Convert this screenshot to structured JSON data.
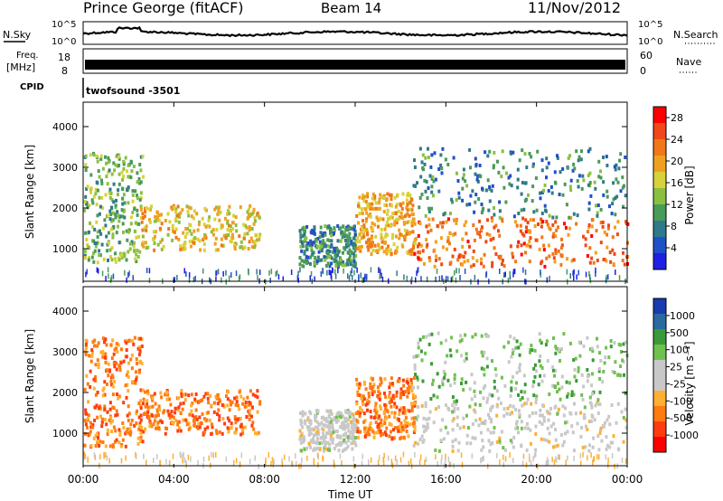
{
  "header": {
    "station": "Prince George (fitACF)",
    "beam": "Beam 14",
    "date": "11/Nov/2012"
  },
  "noise_panel": {
    "left_label": "N.Sky",
    "right_label": "N.Search",
    "tick_top": "10^5",
    "tick_bottom": "10^0"
  },
  "freq_panel": {
    "left_label_1": "Freq.",
    "left_label_2": "[MHz]",
    "tick_top": "18",
    "tick_bottom": "8",
    "right_label": "Nave",
    "right_tick_top": "60",
    "right_tick_bottom": "0"
  },
  "cpid_panel": {
    "label": "CPID",
    "value": "twofsound -3501"
  },
  "colors": {
    "power_scale": [
      "#1f1fe6",
      "#2050c8",
      "#2f7a8a",
      "#4a9a5a",
      "#8ac040",
      "#d7d23a",
      "#f0a020",
      "#f07818",
      "#f04818",
      "#ff0000"
    ],
    "velocity_scale": [
      "#ff0000",
      "#ff3c10",
      "#ff7a10",
      "#ffb030",
      "#c8c8c8",
      "#c8c8c8",
      "#70c050",
      "#3a9a3a",
      "#2a6aa0",
      "#1a3ab0"
    ]
  },
  "chart_data": [
    {
      "type": "heatmap",
      "name": "power",
      "ylabel": "Slant Range [km]",
      "y_ticks": [
        "1000",
        "2000",
        "3000",
        "4000"
      ],
      "ylim": [
        200,
        4600
      ],
      "xlim": [
        "00:00",
        "24:00"
      ],
      "colorbar_label": "Power [dB]",
      "colorbar_ticks": [
        "4",
        "8",
        "12",
        "16",
        "20",
        "24",
        "28"
      ],
      "colorbar_range": [
        0,
        30
      ],
      "features": [
        {
          "t_start": 0.0,
          "t_end": 2.6,
          "range_start": 700,
          "range_end": 3400,
          "level": 12
        },
        {
          "t_start": 2.5,
          "t_end": 7.8,
          "range_start": 1000,
          "range_end": 2100,
          "level": 18
        },
        {
          "t_start": 9.5,
          "t_end": 12.0,
          "range_start": 600,
          "range_end": 1600,
          "level": 8
        },
        {
          "t_start": 12.0,
          "t_end": 14.6,
          "range_start": 900,
          "range_end": 2400,
          "level": 20
        },
        {
          "t_start": 14.5,
          "t_end": 24.0,
          "range_start": 600,
          "range_end": 1800,
          "level": 24
        },
        {
          "t_start": 14.5,
          "t_end": 24.0,
          "range_start": 1800,
          "range_end": 3500,
          "level": 8
        }
      ]
    },
    {
      "type": "heatmap",
      "name": "velocity",
      "ylabel": "Slant Range [km]",
      "y_ticks": [
        "1000",
        "2000",
        "3000",
        "4000"
      ],
      "ylim": [
        200,
        4600
      ],
      "xlim": [
        "00:00",
        "24:00"
      ],
      "colorbar_label": "Velocity [m s⁻¹]",
      "colorbar_ticks": [
        "1000",
        "500",
        "100",
        "25",
        "-25",
        "-100",
        "-500",
        "-1000"
      ],
      "features": [
        {
          "t_start": 0.0,
          "t_end": 2.6,
          "range_start": 700,
          "range_end": 3400,
          "level": -100
        },
        {
          "t_start": 2.5,
          "t_end": 7.8,
          "range_start": 1000,
          "range_end": 2100,
          "level": -100
        },
        {
          "t_start": 9.5,
          "t_end": 12.0,
          "range_start": 600,
          "range_end": 1600,
          "level": 0
        },
        {
          "t_start": 12.0,
          "t_end": 14.6,
          "range_start": 900,
          "range_end": 2400,
          "level": -100
        },
        {
          "t_start": 14.5,
          "t_end": 24.0,
          "range_start": 600,
          "range_end": 1800,
          "level": 0
        },
        {
          "t_start": 14.5,
          "t_end": 24.0,
          "range_start": 1800,
          "range_end": 3500,
          "level": 100
        }
      ]
    }
  ],
  "time_axis": {
    "ticks": [
      "00:00",
      "04:00",
      "08:00",
      "12:00",
      "16:00",
      "20:00",
      "00:00"
    ],
    "label": "Time UT"
  }
}
